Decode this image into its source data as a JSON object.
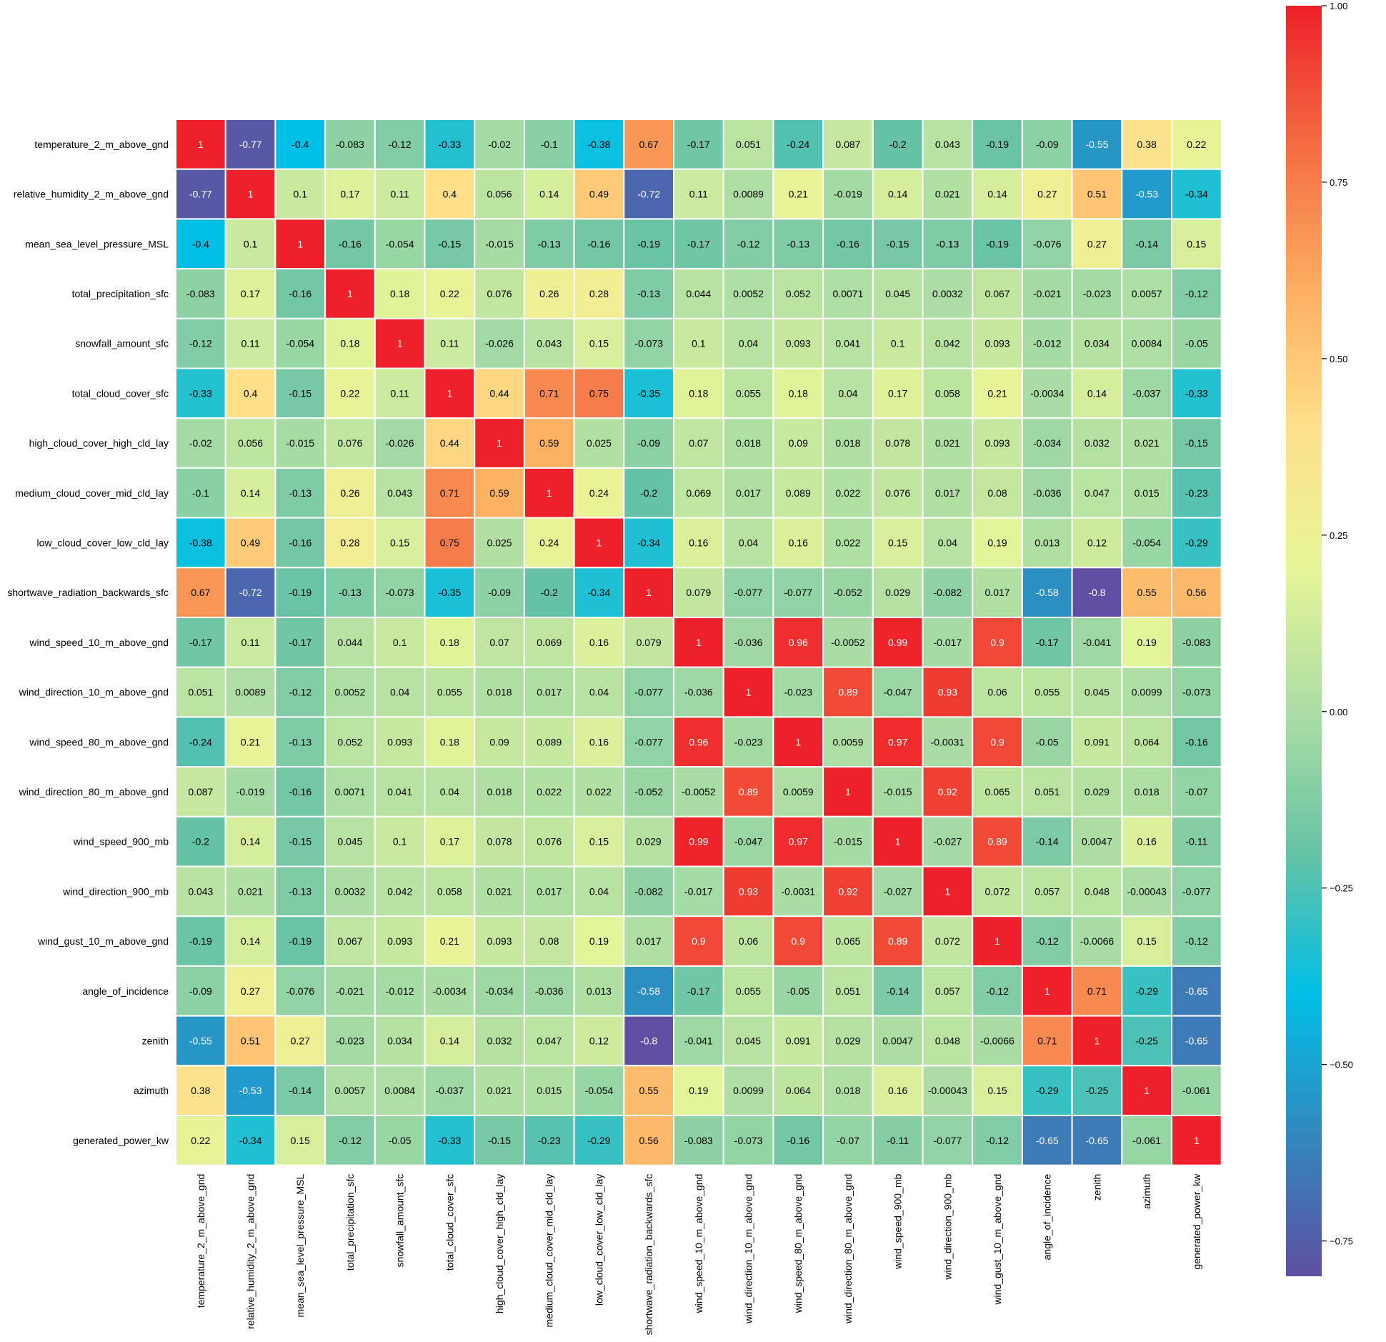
{
  "colors": {
    "colormap": [
      "#5e4fa2",
      "#3288bd",
      "#00bfe6",
      "#66c2a5",
      "#abdda4",
      "#e6f598",
      "#fee08b",
      "#fdae61",
      "#f46d43",
      "#ee2029"
    ],
    "grid_line": "#ffffff",
    "dark_text": "#000000",
    "light_text": "#ffffff"
  },
  "chart_data": {
    "type": "heatmap",
    "title": "",
    "labels": [
      "temperature_2_m_above_gnd",
      "relative_humidity_2_m_above_gnd",
      "mean_sea_level_pressure_MSL",
      "total_precipitation_sfc",
      "snowfall_amount_sfc",
      "total_cloud_cover_sfc",
      "high_cloud_cover_high_cld_lay",
      "medium_cloud_cover_mid_cld_lay",
      "low_cloud_cover_low_cld_lay",
      "shortwave_radiation_backwards_sfc",
      "wind_speed_10_m_above_gnd",
      "wind_direction_10_m_above_gnd",
      "wind_speed_80_m_above_gnd",
      "wind_direction_80_m_above_gnd",
      "wind_speed_900_mb",
      "wind_direction_900_mb",
      "wind_gust_10_m_above_gnd",
      "angle_of_incidence",
      "zenith",
      "azimuth",
      "generated_power_kw"
    ],
    "values": [
      [
        "1",
        "-0.77",
        "-0.4",
        "-0.083",
        "-0.12",
        "-0.33",
        "-0.02",
        "-0.1",
        "-0.38",
        "0.67",
        "-0.17",
        "0.051",
        "-0.24",
        "0.087",
        "-0.2",
        "0.043",
        "-0.19",
        "-0.09",
        "-0.55",
        "0.38",
        "0.22"
      ],
      [
        "-0.77",
        "1",
        "0.1",
        "0.17",
        "0.11",
        "0.4",
        "0.056",
        "0.14",
        "0.49",
        "-0.72",
        "0.11",
        "0.0089",
        "0.21",
        "-0.019",
        "0.14",
        "0.021",
        "0.14",
        "0.27",
        "0.51",
        "-0.53",
        "-0.34"
      ],
      [
        "-0.4",
        "0.1",
        "1",
        "-0.16",
        "-0.054",
        "-0.15",
        "-0.015",
        "-0.13",
        "-0.16",
        "-0.19",
        "-0.17",
        "-0.12",
        "-0.13",
        "-0.16",
        "-0.15",
        "-0.13",
        "-0.19",
        "-0.076",
        "0.27",
        "-0.14",
        "0.15"
      ],
      [
        "-0.083",
        "0.17",
        "-0.16",
        "1",
        "0.18",
        "0.22",
        "0.076",
        "0.26",
        "0.28",
        "-0.13",
        "0.044",
        "0.0052",
        "0.052",
        "0.0071",
        "0.045",
        "0.0032",
        "0.067",
        "-0.021",
        "-0.023",
        "0.0057",
        "-0.12"
      ],
      [
        "-0.12",
        "0.11",
        "-0.054",
        "0.18",
        "1",
        "0.11",
        "-0.026",
        "0.043",
        "0.15",
        "-0.073",
        "0.1",
        "0.04",
        "0.093",
        "0.041",
        "0.1",
        "0.042",
        "0.093",
        "-0.012",
        "0.034",
        "0.0084",
        "-0.05"
      ],
      [
        "-0.33",
        "0.4",
        "-0.15",
        "0.22",
        "0.11",
        "1",
        "0.44",
        "0.71",
        "0.75",
        "-0.35",
        "0.18",
        "0.055",
        "0.18",
        "0.04",
        "0.17",
        "0.058",
        "0.21",
        "-0.0034",
        "0.14",
        "-0.037",
        "-0.33"
      ],
      [
        "-0.02",
        "0.056",
        "-0.015",
        "0.076",
        "-0.026",
        "0.44",
        "1",
        "0.59",
        "0.025",
        "-0.09",
        "0.07",
        "0.018",
        "0.09",
        "0.018",
        "0.078",
        "0.021",
        "0.093",
        "-0.034",
        "0.032",
        "0.021",
        "-0.15"
      ],
      [
        "-0.1",
        "0.14",
        "-0.13",
        "0.26",
        "0.043",
        "0.71",
        "0.59",
        "1",
        "0.24",
        "-0.2",
        "0.069",
        "0.017",
        "0.089",
        "0.022",
        "0.076",
        "0.017",
        "0.08",
        "-0.036",
        "0.047",
        "0.015",
        "-0.23"
      ],
      [
        "-0.38",
        "0.49",
        "-0.16",
        "0.28",
        "0.15",
        "0.75",
        "0.025",
        "0.24",
        "1",
        "-0.34",
        "0.16",
        "0.04",
        "0.16",
        "0.022",
        "0.15",
        "0.04",
        "0.19",
        "0.013",
        "0.12",
        "-0.054",
        "-0.29"
      ],
      [
        "0.67",
        "-0.72",
        "-0.19",
        "-0.13",
        "-0.073",
        "-0.35",
        "-0.09",
        "-0.2",
        "-0.34",
        "1",
        "0.079",
        "-0.077",
        "-0.077",
        "-0.052",
        "0.029",
        "-0.082",
        "0.017",
        "-0.58",
        "-0.8",
        "0.55",
        "0.56"
      ],
      [
        "-0.17",
        "0.11",
        "-0.17",
        "0.044",
        "0.1",
        "0.18",
        "0.07",
        "0.069",
        "0.16",
        "0.079",
        "1",
        "-0.036",
        "0.96",
        "-0.0052",
        "0.99",
        "-0.017",
        "0.9",
        "-0.17",
        "-0.041",
        "0.19",
        "-0.083"
      ],
      [
        "0.051",
        "0.0089",
        "-0.12",
        "0.0052",
        "0.04",
        "0.055",
        "0.018",
        "0.017",
        "0.04",
        "-0.077",
        "-0.036",
        "1",
        "-0.023",
        "0.89",
        "-0.047",
        "0.93",
        "0.06",
        "0.055",
        "0.045",
        "0.0099",
        "-0.073"
      ],
      [
        "-0.24",
        "0.21",
        "-0.13",
        "0.052",
        "0.093",
        "0.18",
        "0.09",
        "0.089",
        "0.16",
        "-0.077",
        "0.96",
        "-0.023",
        "1",
        "0.0059",
        "0.97",
        "-0.0031",
        "0.9",
        "-0.05",
        "0.091",
        "0.064",
        "-0.16"
      ],
      [
        "0.087",
        "-0.019",
        "-0.16",
        "0.0071",
        "0.041",
        "0.04",
        "0.018",
        "0.022",
        "0.022",
        "-0.052",
        "-0.0052",
        "0.89",
        "0.0059",
        "1",
        "-0.015",
        "0.92",
        "0.065",
        "0.051",
        "0.029",
        "0.018",
        "-0.07"
      ],
      [
        "-0.2",
        "0.14",
        "-0.15",
        "0.045",
        "0.1",
        "0.17",
        "0.078",
        "0.076",
        "0.15",
        "0.029",
        "0.99",
        "-0.047",
        "0.97",
        "-0.015",
        "1",
        "-0.027",
        "0.89",
        "-0.14",
        "0.0047",
        "0.16",
        "-0.11"
      ],
      [
        "0.043",
        "0.021",
        "-0.13",
        "0.0032",
        "0.042",
        "0.058",
        "0.021",
        "0.017",
        "0.04",
        "-0.082",
        "-0.017",
        "0.93",
        "-0.0031",
        "0.92",
        "-0.027",
        "1",
        "0.072",
        "0.057",
        "0.048",
        "-0.00043",
        "-0.077"
      ],
      [
        "-0.19",
        "0.14",
        "-0.19",
        "0.067",
        "0.093",
        "0.21",
        "0.093",
        "0.08",
        "0.19",
        "0.017",
        "0.9",
        "0.06",
        "0.9",
        "0.065",
        "0.89",
        "0.072",
        "1",
        "-0.12",
        "-0.0066",
        "0.15",
        "-0.12"
      ],
      [
        "-0.09",
        "0.27",
        "-0.076",
        "-0.021",
        "-0.012",
        "-0.0034",
        "-0.034",
        "-0.036",
        "0.013",
        "-0.58",
        "-0.17",
        "0.055",
        "-0.05",
        "0.051",
        "-0.14",
        "0.057",
        "-0.12",
        "1",
        "0.71",
        "-0.29",
        "-0.65"
      ],
      [
        "-0.55",
        "0.51",
        "0.27",
        "-0.023",
        "0.034",
        "0.14",
        "0.032",
        "0.047",
        "0.12",
        "-0.8",
        "-0.041",
        "0.045",
        "0.091",
        "0.029",
        "0.0047",
        "0.048",
        "-0.0066",
        "0.71",
        "1",
        "-0.25",
        "-0.65"
      ],
      [
        "0.38",
        "-0.53",
        "-0.14",
        "0.0057",
        "0.0084",
        "-0.037",
        "0.021",
        "0.015",
        "-0.054",
        "0.55",
        "0.19",
        "0.0099",
        "0.064",
        "0.018",
        "0.16",
        "-0.00043",
        "0.15",
        "-0.29",
        "-0.25",
        "1",
        "-0.061"
      ],
      [
        "0.22",
        "-0.34",
        "0.15",
        "-0.12",
        "-0.05",
        "-0.33",
        "-0.15",
        "-0.23",
        "-0.29",
        "0.56",
        "-0.083",
        "-0.073",
        "-0.16",
        "-0.07",
        "-0.11",
        "-0.077",
        "-0.12",
        "-0.65",
        "-0.65",
        "-0.061",
        "1"
      ]
    ],
    "colorbar": {
      "vmin": -0.8,
      "vmax": 1.0,
      "ticks": [
        1.0,
        0.75,
        0.5,
        0.25,
        0.0,
        -0.25,
        -0.5,
        -0.75
      ],
      "tick_labels": [
        "1.00",
        "0.75",
        "0.50",
        "0.25",
        "0.00",
        "−0.25",
        "−0.50",
        "−0.75"
      ]
    }
  }
}
